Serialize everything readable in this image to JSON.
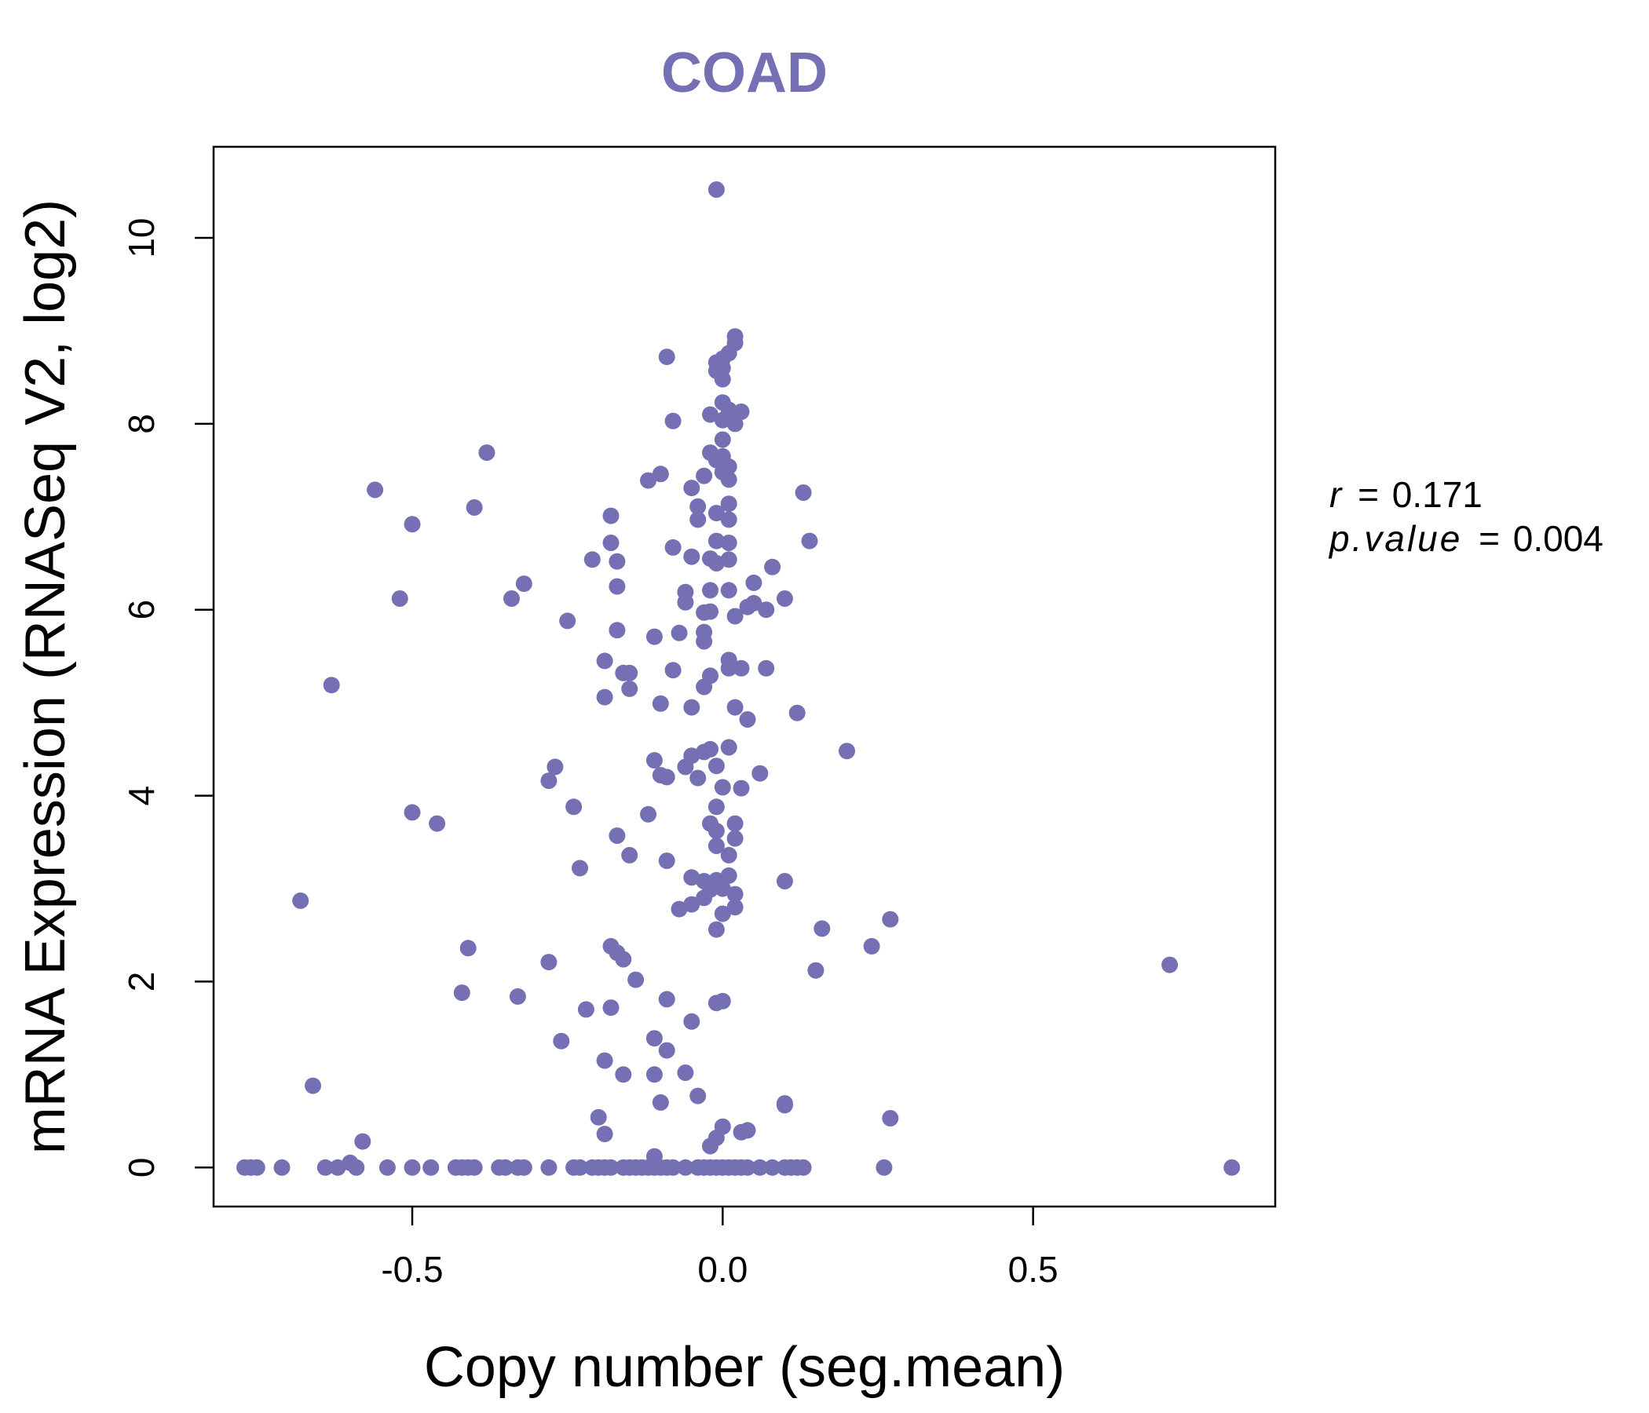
{
  "chart_data": {
    "type": "scatter",
    "title": "COAD",
    "xlabel": "Copy number (seg.mean)",
    "ylabel": "mRNA Expression (RNASeq V2, log2)",
    "xlim": [
      -0.82,
      0.89
    ],
    "ylim": [
      -0.42,
      10.98
    ],
    "x_ticks": [
      -0.5,
      0.0,
      0.5
    ],
    "x_tick_labels": [
      "-0.5",
      "0.0",
      "0.5"
    ],
    "y_ticks": [
      0,
      2,
      4,
      6,
      8,
      10
    ],
    "y_tick_labels": [
      "0",
      "2",
      "4",
      "6",
      "8",
      "10"
    ],
    "grid": false,
    "point_color": "#7570B3",
    "title_color": "#7570B3",
    "annotations": {
      "r_label": "r",
      "r_value": "0.171",
      "p_label": "p.value",
      "p_value": "0.004",
      "equals": "="
    },
    "points": [
      [
        -0.77,
        0
      ],
      [
        -0.76,
        0
      ],
      [
        -0.75,
        0
      ],
      [
        -0.71,
        0
      ],
      [
        -0.64,
        0
      ],
      [
        -0.62,
        0
      ],
      [
        -0.6,
        0.05
      ],
      [
        -0.59,
        0
      ],
      [
        -0.54,
        0
      ],
      [
        -0.5,
        0
      ],
      [
        -0.47,
        0
      ],
      [
        -0.43,
        0
      ],
      [
        -0.42,
        0
      ],
      [
        -0.41,
        0
      ],
      [
        -0.4,
        0
      ],
      [
        -0.36,
        0
      ],
      [
        -0.35,
        0
      ],
      [
        -0.33,
        0
      ],
      [
        -0.32,
        0
      ],
      [
        -0.28,
        0
      ],
      [
        -0.24,
        0
      ],
      [
        -0.23,
        0
      ],
      [
        -0.21,
        0
      ],
      [
        -0.2,
        0
      ],
      [
        -0.19,
        0
      ],
      [
        -0.18,
        0
      ],
      [
        -0.16,
        0
      ],
      [
        -0.15,
        0
      ],
      [
        -0.14,
        0
      ],
      [
        -0.13,
        0
      ],
      [
        -0.12,
        0
      ],
      [
        -0.11,
        0
      ],
      [
        -0.1,
        0
      ],
      [
        -0.09,
        0
      ],
      [
        -0.08,
        0
      ],
      [
        -0.06,
        0
      ],
      [
        -0.04,
        0
      ],
      [
        -0.03,
        0
      ],
      [
        -0.02,
        0
      ],
      [
        -0.01,
        0
      ],
      [
        0,
        0
      ],
      [
        0.01,
        0
      ],
      [
        0.02,
        0
      ],
      [
        0.03,
        0
      ],
      [
        0.04,
        0
      ],
      [
        0.06,
        0
      ],
      [
        0.08,
        0
      ],
      [
        0.1,
        0
      ],
      [
        0.11,
        0
      ],
      [
        0.12,
        0
      ],
      [
        0.13,
        0
      ],
      [
        0.26,
        0
      ],
      [
        0.82,
        0
      ],
      [
        -0.58,
        0.28
      ],
      [
        -0.66,
        0.88
      ],
      [
        -0.68,
        2.87
      ],
      [
        -0.63,
        5.19
      ],
      [
        -0.56,
        7.29
      ],
      [
        -0.52,
        6.12
      ],
      [
        -0.5,
        6.92
      ],
      [
        -0.5,
        3.82
      ],
      [
        -0.46,
        3.7
      ],
      [
        -0.42,
        1.88
      ],
      [
        -0.41,
        2.36
      ],
      [
        -0.4,
        7.1
      ],
      [
        -0.38,
        7.69
      ],
      [
        -0.34,
        6.12
      ],
      [
        -0.33,
        1.84
      ],
      [
        -0.32,
        6.28
      ],
      [
        -0.28,
        2.21
      ],
      [
        -0.28,
        4.16
      ],
      [
        -0.27,
        4.31
      ],
      [
        -0.26,
        1.36
      ],
      [
        -0.25,
        5.88
      ],
      [
        -0.24,
        3.88
      ],
      [
        -0.23,
        3.22
      ],
      [
        -0.22,
        1.7
      ],
      [
        -0.21,
        6.54
      ],
      [
        -0.2,
        0.54
      ],
      [
        -0.19,
        0.36
      ],
      [
        -0.19,
        1.15
      ],
      [
        -0.19,
        5.06
      ],
      [
        -0.19,
        5.45
      ],
      [
        -0.18,
        7.01
      ],
      [
        -0.18,
        6.72
      ],
      [
        -0.18,
        2.38
      ],
      [
        -0.18,
        1.72
      ],
      [
        -0.17,
        6.25
      ],
      [
        -0.17,
        2.31
      ],
      [
        -0.17,
        6.52
      ],
      [
        -0.17,
        5.78
      ],
      [
        -0.17,
        3.57
      ],
      [
        -0.16,
        2.24
      ],
      [
        -0.16,
        1.0
      ],
      [
        -0.16,
        5.32
      ],
      [
        -0.15,
        5.32
      ],
      [
        -0.15,
        5.15
      ],
      [
        -0.15,
        3.36
      ],
      [
        -0.14,
        2.02
      ],
      [
        -0.12,
        3.8
      ],
      [
        -0.12,
        7.39
      ],
      [
        -0.11,
        1.0
      ],
      [
        -0.11,
        1.39
      ],
      [
        -0.11,
        5.71
      ],
      [
        -0.11,
        4.38
      ],
      [
        -0.1,
        7.46
      ],
      [
        -0.1,
        4.22
      ],
      [
        -0.1,
        0.7
      ],
      [
        -0.1,
        4.99
      ],
      [
        -0.09,
        1.81
      ],
      [
        -0.09,
        3.3
      ],
      [
        -0.09,
        4.2
      ],
      [
        -0.09,
        1.26
      ],
      [
        -0.09,
        8.72
      ],
      [
        -0.08,
        6.67
      ],
      [
        -0.08,
        8.03
      ],
      [
        -0.08,
        5.35
      ],
      [
        -0.07,
        5.75
      ],
      [
        -0.07,
        2.78
      ],
      [
        -0.06,
        4.31
      ],
      [
        -0.06,
        6.08
      ],
      [
        -0.06,
        6.19
      ],
      [
        -0.06,
        1.02
      ],
      [
        -0.05,
        6.57
      ],
      [
        -0.05,
        4.95
      ],
      [
        -0.05,
        7.31
      ],
      [
        -0.05,
        2.83
      ],
      [
        -0.05,
        4.43
      ],
      [
        -0.05,
        3.12
      ],
      [
        -0.05,
        1.57
      ],
      [
        -0.04,
        0.77
      ],
      [
        -0.04,
        4.19
      ],
      [
        -0.04,
        7.11
      ],
      [
        -0.04,
        6.97
      ],
      [
        -0.03,
        2.9
      ],
      [
        -0.03,
        4.47
      ],
      [
        -0.03,
        5.66
      ],
      [
        -0.03,
        5.76
      ],
      [
        -0.03,
        5.97
      ],
      [
        -0.03,
        7.44
      ],
      [
        -0.03,
        5.17
      ],
      [
        -0.03,
        3.08
      ],
      [
        -0.02,
        6.55
      ],
      [
        -0.02,
        7.69
      ],
      [
        -0.02,
        2.99
      ],
      [
        -0.02,
        4.5
      ],
      [
        -0.02,
        3.7
      ],
      [
        -0.02,
        6.21
      ],
      [
        -0.02,
        5.29
      ],
      [
        -0.02,
        8.1
      ],
      [
        -0.02,
        0.23
      ],
      [
        -0.02,
        5.98
      ],
      [
        -0.01,
        3.62
      ],
      [
        -0.01,
        2.56
      ],
      [
        -0.01,
        3.09
      ],
      [
        -0.01,
        7.61
      ],
      [
        -0.01,
        6.5
      ],
      [
        -0.01,
        6.74
      ],
      [
        -0.01,
        1.77
      ],
      [
        -0.01,
        0.32
      ],
      [
        -0.01,
        3.46
      ],
      [
        -0.01,
        4.32
      ],
      [
        -0.01,
        7.04
      ],
      [
        -0.01,
        3.88
      ],
      [
        -0.01,
        8.57
      ],
      [
        -0.01,
        10.52
      ],
      [
        -0.01,
        8.66
      ],
      [
        0,
        8.6
      ],
      [
        0,
        8.48
      ],
      [
        0,
        3.0
      ],
      [
        0,
        2.73
      ],
      [
        0,
        4.09
      ],
      [
        0,
        7.48
      ],
      [
        0,
        7.58
      ],
      [
        0,
        1.79
      ],
      [
        0,
        7.65
      ],
      [
        0,
        7.83
      ],
      [
        0,
        8.04
      ],
      [
        0,
        8.23
      ],
      [
        0,
        0.44
      ],
      [
        0,
        8.7
      ],
      [
        0.01,
        6.21
      ],
      [
        0.01,
        6.72
      ],
      [
        0.01,
        6.54
      ],
      [
        0.01,
        5.46
      ],
      [
        0.01,
        5.37
      ],
      [
        0.01,
        3.36
      ],
      [
        0.01,
        3.14
      ],
      [
        0.01,
        7.54
      ],
      [
        0.01,
        7.14
      ],
      [
        0.01,
        6.97
      ],
      [
        0.01,
        8.15
      ],
      [
        0.01,
        8.76
      ],
      [
        0.01,
        7.4
      ],
      [
        0.01,
        4.52
      ],
      [
        0.02,
        5.93
      ],
      [
        0.02,
        2.94
      ],
      [
        0.02,
        2.8
      ],
      [
        0.02,
        3.7
      ],
      [
        0.02,
        3.54
      ],
      [
        0.02,
        8.0
      ],
      [
        0.02,
        8.87
      ],
      [
        0.02,
        8.94
      ],
      [
        0.02,
        4.95
      ],
      [
        0.03,
        5.37
      ],
      [
        0.03,
        8.13
      ],
      [
        0.03,
        4.08
      ],
      [
        0.03,
        0.38
      ],
      [
        0.04,
        6.03
      ],
      [
        0.04,
        0.4
      ],
      [
        0.04,
        4.82
      ],
      [
        0.05,
        6.07
      ],
      [
        0.05,
        6.29
      ],
      [
        0.06,
        4.24
      ],
      [
        0.07,
        5.37
      ],
      [
        0.07,
        6.0
      ],
      [
        0.08,
        6.46
      ],
      [
        0.1,
        3.08
      ],
      [
        0.1,
        0.67
      ],
      [
        0.1,
        0.69
      ],
      [
        0.1,
        6.12
      ],
      [
        0.12,
        4.89
      ],
      [
        0.13,
        7.26
      ],
      [
        0.14,
        6.74
      ],
      [
        0.15,
        2.12
      ],
      [
        0.16,
        2.57
      ],
      [
        0.2,
        4.48
      ],
      [
        0.24,
        2.38
      ],
      [
        0.27,
        0.53
      ],
      [
        0.27,
        2.67
      ],
      [
        0.72,
        2.18
      ],
      [
        -0.11,
        0.12
      ]
    ]
  }
}
